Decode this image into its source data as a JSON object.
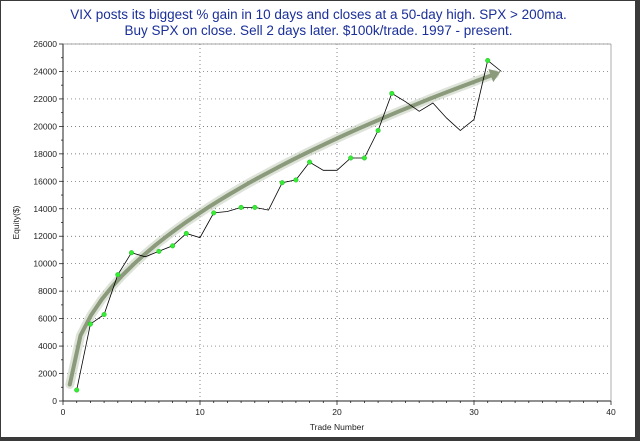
{
  "chart_data": {
    "type": "line",
    "title": "VIX posts its biggest % gain in 10 days and closes at a 50-day high. SPX > 200ma.",
    "subtitle": "Buy SPX on close. Sell 2 days later. $100k/trade. 1997 - present.",
    "xlabel": "Trade Number",
    "ylabel": "Equity($)",
    "xlim": [
      0,
      40
    ],
    "ylim": [
      0,
      26000
    ],
    "x_ticks": [
      0,
      10,
      20,
      30,
      40
    ],
    "y_ticks": [
      0,
      2000,
      4000,
      6000,
      8000,
      10000,
      12000,
      14000,
      16000,
      18000,
      20000,
      22000,
      24000,
      26000
    ],
    "grid": true,
    "colors": {
      "equity_line": "#000000",
      "marker": "#33ee33",
      "trend": "#8a9a7a",
      "title": "#1a2f9a"
    },
    "series": [
      {
        "x": [
          1,
          2,
          3,
          4,
          5,
          6,
          7,
          8,
          9,
          10,
          11,
          12,
          13,
          14,
          15,
          16,
          17,
          18,
          19,
          20,
          21,
          22,
          23,
          24,
          25,
          26,
          27,
          28,
          29,
          30,
          31,
          32
        ],
        "y": [
          800,
          5600,
          6300,
          9200,
          10800,
          10500,
          10900,
          11300,
          12200,
          11900,
          13700,
          13800,
          14100,
          14100,
          13900,
          15900,
          16100,
          17400,
          16800,
          16800,
          17700,
          17700,
          19700,
          22400,
          21800,
          21100,
          21700,
          20600,
          19700,
          20500,
          24800,
          24000
        ],
        "markers": [
          1,
          2,
          3,
          4,
          5,
          7,
          8,
          9,
          11,
          13,
          14,
          16,
          17,
          18,
          21,
          22,
          23,
          24,
          31
        ]
      }
    ],
    "trendline": {
      "x_start": 0.5,
      "x_end": 31.5,
      "y_start": 1200,
      "y_end": 23800
    }
  }
}
